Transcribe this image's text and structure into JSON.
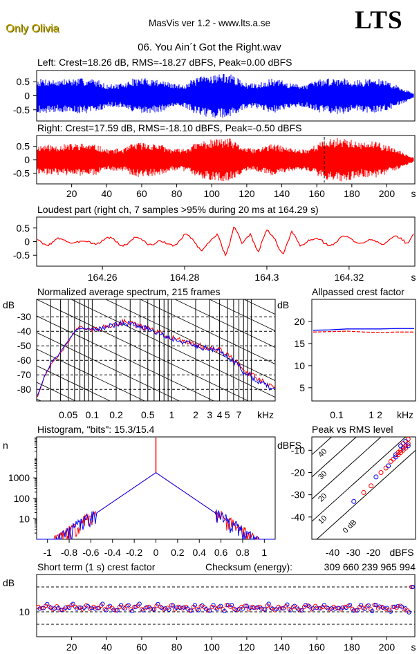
{
  "header": {
    "badge": "Only Olivia",
    "app_title": "MasVis ver 1.2 - www.lts.a.se",
    "logo": "LTS",
    "track": "06. You Ain´t Got the Right.wav"
  },
  "colors": {
    "left": "#0000ff",
    "right": "#ff0000",
    "grid": "#000000"
  },
  "chart_data": [
    {
      "id": "left",
      "type": "line",
      "title": "Left: Crest=18.26 dB, RMS=-18.27 dBFS, Peak=0.00 dBFS",
      "color": "#0000ff",
      "ylim": [
        -0.9,
        0.9
      ],
      "yticks": [
        "0.5",
        "0",
        "-0.5"
      ],
      "xlim": [
        0,
        216
      ],
      "envelope": {
        "x": [
          0,
          5,
          10,
          15,
          20,
          25,
          30,
          35,
          40,
          45,
          50,
          55,
          60,
          65,
          70,
          75,
          80,
          85,
          90,
          95,
          100,
          105,
          110,
          115,
          120,
          125,
          130,
          135,
          140,
          145,
          150,
          155,
          160,
          165,
          170,
          175,
          180,
          185,
          190,
          195,
          200,
          205,
          210,
          215
        ],
        "amp": [
          0.6,
          0.62,
          0.58,
          0.6,
          0.62,
          0.63,
          0.62,
          0.58,
          0.4,
          0.42,
          0.44,
          0.62,
          0.64,
          0.62,
          0.6,
          0.48,
          0.42,
          0.44,
          0.62,
          0.72,
          0.78,
          0.8,
          0.8,
          0.62,
          0.45,
          0.44,
          0.55,
          0.62,
          0.55,
          0.45,
          0.42,
          0.42,
          0.58,
          0.62,
          0.64,
          0.66,
          0.6,
          0.55,
          0.62,
          0.6,
          0.55,
          0.4,
          0.25,
          0.1
        ]
      }
    },
    {
      "id": "right",
      "type": "line",
      "title": "Right: Crest=17.59 dB, RMS=-18.10 dBFS, Peak=-0.50 dBFS",
      "color": "#ff0000",
      "ylim": [
        -0.9,
        0.9
      ],
      "yticks": [
        "0.5",
        "0",
        "-0.5"
      ],
      "xlim": [
        0,
        216
      ],
      "xticks": [
        "20",
        "40",
        "60",
        "80",
        "100",
        "120",
        "140",
        "160",
        "180",
        "200"
      ],
      "xunit": "s",
      "marker_x": 164.29,
      "envelope": {
        "x": [
          0,
          5,
          10,
          15,
          20,
          25,
          30,
          35,
          40,
          45,
          50,
          55,
          60,
          65,
          70,
          75,
          80,
          85,
          90,
          95,
          100,
          105,
          110,
          115,
          120,
          125,
          130,
          135,
          140,
          145,
          150,
          155,
          160,
          165,
          170,
          175,
          180,
          185,
          190,
          195,
          200,
          205,
          210,
          215
        ],
        "amp": [
          0.55,
          0.58,
          0.55,
          0.58,
          0.6,
          0.62,
          0.6,
          0.55,
          0.4,
          0.42,
          0.42,
          0.62,
          0.66,
          0.62,
          0.6,
          0.45,
          0.4,
          0.44,
          0.6,
          0.72,
          0.76,
          0.8,
          0.8,
          0.6,
          0.44,
          0.42,
          0.52,
          0.6,
          0.52,
          0.44,
          0.4,
          0.42,
          0.6,
          0.75,
          0.8,
          0.85,
          0.75,
          0.62,
          0.7,
          0.65,
          0.55,
          0.4,
          0.25,
          0.1
        ]
      }
    },
    {
      "id": "loudest",
      "type": "line",
      "title": "Loudest part (right ch, 7 samples >95% during 20 ms at 164.29 s)",
      "color": "#ff0000",
      "ylim": [
        -0.9,
        0.9
      ],
      "yticks": [
        "0.5",
        "0",
        "-0.5"
      ],
      "xlim": [
        164.244,
        164.336
      ],
      "xticks": [
        "164.26",
        "164.28",
        "164.3",
        "164.32"
      ],
      "xunit": "s",
      "x": [
        164.244,
        164.248,
        164.252,
        164.256,
        164.26,
        164.264,
        164.268,
        164.272,
        164.276,
        164.28,
        164.284,
        164.288,
        164.29,
        164.292,
        164.294,
        164.296,
        164.298,
        164.3,
        164.302,
        164.304,
        164.306,
        164.308,
        164.31,
        164.314,
        164.318,
        164.322,
        164.326,
        164.33,
        164.334,
        164.336
      ],
      "y": [
        0.05,
        -0.05,
        0.08,
        -0.1,
        0.1,
        -0.05,
        0.05,
        0.0,
        -0.15,
        0.2,
        -0.2,
        0.15,
        -0.45,
        0.6,
        -0.2,
        0.35,
        -0.3,
        0.3,
        0.1,
        -0.4,
        0.25,
        -0.15,
        0.15,
        -0.1,
        0.1,
        0.05,
        -0.05,
        0.1,
        0.0,
        0.45
      ]
    },
    {
      "id": "spectrum",
      "type": "line",
      "title": "Normalized average spectrum, 215 frames",
      "ylabel": "dB",
      "xunit": "kHz",
      "xscale": "log",
      "xlim": [
        0.02,
        20
      ],
      "ylim": [
        -88,
        -18
      ],
      "yticks": [
        -30,
        -40,
        -50,
        -60,
        -70,
        -80
      ],
      "xticks": [
        "0.05",
        "0.1",
        "0.2",
        "0.5",
        "1",
        "2",
        "3",
        "4",
        "5",
        "7"
      ],
      "x": [
        0.02,
        0.025,
        0.03,
        0.04,
        0.05,
        0.06,
        0.07,
        0.08,
        0.1,
        0.12,
        0.15,
        0.2,
        0.25,
        0.3,
        0.4,
        0.5,
        0.6,
        0.7,
        0.8,
        1,
        1.2,
        1.5,
        2,
        2.5,
        3,
        4,
        5,
        6,
        7,
        8,
        10,
        12,
        15,
        20
      ],
      "series": [
        {
          "color": "#ff0000",
          "values": [
            -86,
            -72,
            -63,
            -55,
            -47,
            -40,
            -37,
            -38,
            -39,
            -38,
            -37,
            -35,
            -33,
            -34,
            -37,
            -38,
            -40,
            -41,
            -43,
            -44,
            -46,
            -47,
            -49,
            -51,
            -52,
            -53,
            -56,
            -60,
            -63,
            -67,
            -70,
            -73,
            -76,
            -80
          ]
        },
        {
          "color": "#0000ff",
          "values": [
            -85,
            -71,
            -62,
            -54,
            -46,
            -40,
            -38,
            -38,
            -39,
            -38,
            -37,
            -35,
            -34,
            -35,
            -37,
            -38,
            -40,
            -41,
            -43,
            -45,
            -46,
            -48,
            -50,
            -51,
            -52,
            -54,
            -57,
            -61,
            -64,
            -68,
            -71,
            -74,
            -77,
            -81
          ]
        }
      ]
    },
    {
      "id": "allpass",
      "type": "line",
      "title": "Allpassed crest factor",
      "ylabel": "dB",
      "xunit": "kHz",
      "xscale": "log",
      "xlim": [
        0.04,
        20
      ],
      "ylim": [
        2,
        25
      ],
      "yticks": [
        20,
        15,
        10,
        5
      ],
      "xticks": [
        "0.1",
        "1",
        "2",
        "kHz"
      ],
      "series": [
        {
          "color": "#0000ff",
          "values": [
            18.0,
            18.1,
            18.3,
            18.3,
            18.3,
            18.4,
            18.4
          ]
        },
        {
          "color": "#ff0000",
          "values": [
            17.6,
            17.7,
            17.8,
            17.6,
            17.5,
            17.6,
            17.6
          ]
        }
      ]
    },
    {
      "id": "histogram",
      "type": "line",
      "title": "Histogram, \"bits\": 15.3/15.4",
      "ylabel": "n",
      "xlim": [
        -1.1,
        1.1
      ],
      "yscale": "log",
      "ylim": [
        1,
        100000
      ],
      "yticks": [
        "1000",
        "100",
        "10"
      ],
      "xticks": [
        "-1",
        "-0.8",
        "-0.6",
        "-0.4",
        "-0.2",
        "0",
        "0.2",
        "0.4",
        "0.6",
        "0.8",
        "1"
      ],
      "peak_value": 1800
    },
    {
      "id": "peak_rms",
      "type": "scatter",
      "title": "Peak vs RMS level",
      "ylabel": "dBFS",
      "xunit": "dBFS",
      "xlim": [
        -52,
        -10
      ],
      "ylim": [
        -50,
        -4
      ],
      "yticks": [
        -10,
        -20,
        -30,
        -40
      ],
      "xticks": [
        "-40",
        "-30",
        "-20",
        "dBFS"
      ],
      "diag_labels": [
        "40",
        "30",
        "20",
        "10",
        "0 dB"
      ],
      "points": [
        [
          -35,
          -33
        ],
        [
          -31,
          -29
        ],
        [
          -28,
          -26
        ],
        [
          -26,
          -22
        ],
        [
          -24,
          -20
        ],
        [
          -22,
          -18
        ],
        [
          -21,
          -17
        ],
        [
          -20,
          -15
        ],
        [
          -19,
          -14
        ],
        [
          -18,
          -12
        ],
        [
          -17,
          -11
        ],
        [
          -16,
          -10
        ],
        [
          -15,
          -9
        ],
        [
          -15,
          -7
        ],
        [
          -14,
          -8
        ],
        [
          -14,
          -6
        ],
        [
          -13,
          -7
        ],
        [
          -13,
          -5
        ],
        [
          -18,
          -13
        ],
        [
          -17,
          -12
        ],
        [
          -16,
          -11
        ],
        [
          -16,
          -8
        ],
        [
          -15,
          -10
        ],
        [
          -14,
          -9
        ],
        [
          -13,
          -8
        ]
      ]
    },
    {
      "id": "crest_short",
      "type": "scatter",
      "title": "Short term (1 s) crest factor",
      "ylabel": "dB",
      "xlim": [
        0,
        216
      ],
      "ylim": [
        0,
        25
      ],
      "ytick": "10",
      "xticks": [
        "20",
        "40",
        "60",
        "80",
        "100",
        "120",
        "140",
        "160",
        "180",
        "200"
      ],
      "xunit": "s",
      "checksum_label": "Checksum (energy):",
      "checksum_value": "309 660 239 965 994",
      "right": [
        12,
        11.5,
        12.4,
        12,
        11,
        12.2,
        10.8,
        11,
        12,
        12.8,
        12,
        11.7,
        11,
        12.6,
        11.2,
        12,
        11.5,
        12.5,
        11,
        12,
        11.5,
        10.6,
        12,
        11.7,
        12.3,
        11,
        12,
        12.5,
        11,
        11.5,
        12,
        11,
        12.4,
        12,
        11,
        11.6,
        12.6,
        11,
        12,
        11.4,
        12,
        10.5,
        12,
        11,
        12.2,
        11.8,
        10.5,
        12,
        11.5,
        12,
        11,
        12.7,
        12,
        11.2,
        10.8,
        12,
        12.4,
        11,
        12,
        11.5,
        12,
        11,
        12.5,
        11.6,
        10.7,
        12,
        11.4,
        12.2,
        11,
        12,
        11.7,
        10.6,
        12,
        12.5,
        11,
        12.3,
        11.4,
        12,
        11.8,
        11,
        12,
        11.5,
        11,
        12,
        12.4,
        11.2,
        10.6,
        12,
        11.5,
        12.2,
        11,
        12.8,
        11.4,
        12,
        11.2,
        10.8,
        12,
        11.6,
        12.4,
        11,
        10.5,
        20
      ]
    }
  ]
}
